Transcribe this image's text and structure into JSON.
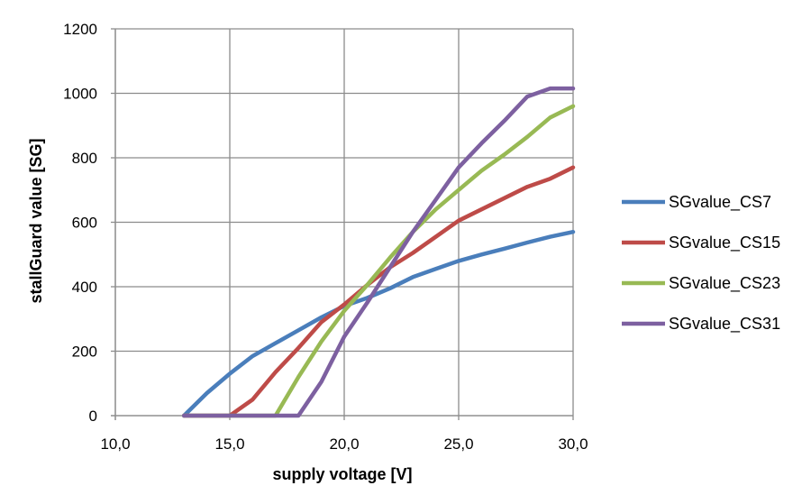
{
  "chart_data": {
    "type": "line",
    "title": "",
    "xlabel": "supply voltage [V]",
    "ylabel": "stallGuard value [SG]",
    "xlim": [
      10,
      30
    ],
    "ylim": [
      0,
      1200
    ],
    "x_ticks": [
      10,
      15,
      20,
      25,
      30
    ],
    "x_tick_labels": [
      "10,0",
      "15,0",
      "20,0",
      "25,0",
      "30,0"
    ],
    "y_ticks": [
      0,
      200,
      400,
      600,
      800,
      1000,
      1200
    ],
    "y_tick_labels": [
      "0",
      "200",
      "400",
      "600",
      "800",
      "1000",
      "1200"
    ],
    "grid": true,
    "legend_position": "right",
    "series": [
      {
        "name": "SGvalue_CS7",
        "color": "#4a7ebb",
        "points": [
          [
            13,
            0
          ],
          [
            14,
            70
          ],
          [
            15,
            130
          ],
          [
            16,
            185
          ],
          [
            17,
            225
          ],
          [
            18,
            265
          ],
          [
            19,
            305
          ],
          [
            20,
            340
          ],
          [
            21,
            365
          ],
          [
            22,
            395
          ],
          [
            23,
            430
          ],
          [
            24,
            455
          ],
          [
            25,
            480
          ],
          [
            26,
            500
          ],
          [
            27,
            518
          ],
          [
            28,
            537
          ],
          [
            29,
            555
          ],
          [
            30,
            570
          ]
        ]
      },
      {
        "name": "SGvalue_CS15",
        "color": "#be4b48",
        "points": [
          [
            13,
            0
          ],
          [
            14,
            0
          ],
          [
            15,
            0
          ],
          [
            16,
            50
          ],
          [
            17,
            135
          ],
          [
            18,
            210
          ],
          [
            19,
            290
          ],
          [
            20,
            345
          ],
          [
            21,
            405
          ],
          [
            22,
            460
          ],
          [
            23,
            505
          ],
          [
            24,
            555
          ],
          [
            25,
            605
          ],
          [
            26,
            640
          ],
          [
            27,
            675
          ],
          [
            28,
            710
          ],
          [
            29,
            735
          ],
          [
            30,
            770
          ]
        ]
      },
      {
        "name": "SGvalue_CS23",
        "color": "#98b954",
        "points": [
          [
            13,
            0
          ],
          [
            14,
            0
          ],
          [
            15,
            0
          ],
          [
            16,
            0
          ],
          [
            17,
            0
          ],
          [
            18,
            120
          ],
          [
            19,
            230
          ],
          [
            20,
            325
          ],
          [
            21,
            405
          ],
          [
            22,
            490
          ],
          [
            23,
            570
          ],
          [
            24,
            640
          ],
          [
            25,
            700
          ],
          [
            26,
            760
          ],
          [
            27,
            810
          ],
          [
            28,
            865
          ],
          [
            29,
            925
          ],
          [
            30,
            960
          ]
        ]
      },
      {
        "name": "SGvalue_CS31",
        "color": "#7d60a0",
        "points": [
          [
            13,
            0
          ],
          [
            14,
            0
          ],
          [
            15,
            0
          ],
          [
            16,
            0
          ],
          [
            17,
            0
          ],
          [
            18,
            0
          ],
          [
            19,
            105
          ],
          [
            20,
            245
          ],
          [
            21,
            350
          ],
          [
            22,
            460
          ],
          [
            23,
            570
          ],
          [
            24,
            670
          ],
          [
            25,
            770
          ],
          [
            26,
            845
          ],
          [
            27,
            915
          ],
          [
            28,
            990
          ],
          [
            29,
            1015
          ],
          [
            30,
            1015
          ]
        ]
      }
    ]
  }
}
